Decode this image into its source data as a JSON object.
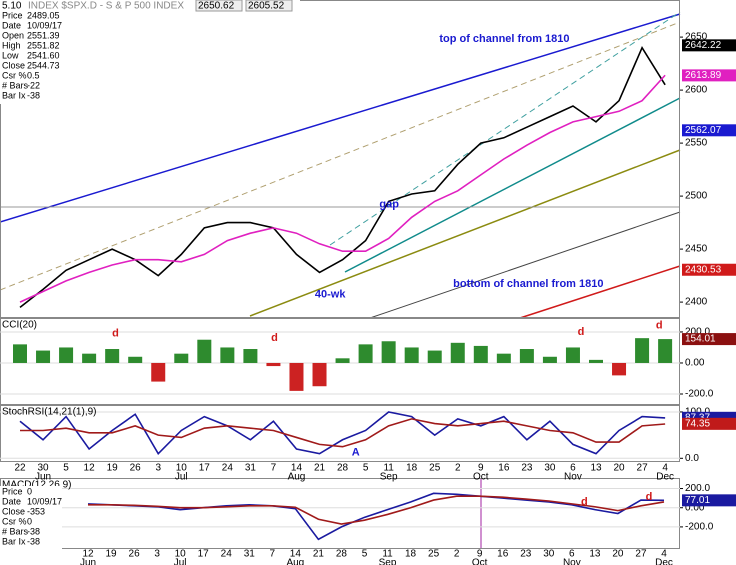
{
  "chart_data": [
    {
      "type": "line",
      "period": "5.10",
      "title": "INDEX $SPX.D - S & P 500 INDEX",
      "header_values": [
        2650.62,
        2605.52
      ],
      "info": [
        [
          "Price",
          "2489.05"
        ],
        [
          "Date",
          "10/09/17"
        ],
        [
          "Open",
          "2551.39"
        ],
        [
          "High",
          "2551.82"
        ],
        [
          "Low",
          "2541.60"
        ],
        [
          "Close",
          "2544.73"
        ],
        [
          "Csr %",
          "0.5"
        ],
        [
          "# Bars",
          "-22"
        ],
        [
          "Bar Ix",
          "-38"
        ]
      ],
      "ylim": [
        2385,
        2685
      ],
      "yticks": [
        2650,
        2600,
        2550,
        2500,
        2450,
        2400
      ],
      "grid": false,
      "series": [
        {
          "color": "#000000",
          "values": [
            2395,
            2412,
            2430,
            2440,
            2450,
            2440,
            2425,
            2445,
            2470,
            2475,
            2475,
            2470,
            2445,
            2428,
            2440,
            2458,
            2495,
            2502,
            2505,
            2530,
            2550,
            2555,
            2565,
            2575,
            2585,
            2570,
            2590,
            2640,
            2605
          ]
        },
        {
          "color": "#e020c0",
          "values": [
            2400,
            2410,
            2420,
            2428,
            2435,
            2440,
            2440,
            2438,
            2445,
            2458,
            2465,
            2470,
            2465,
            2455,
            2448,
            2448,
            2460,
            2480,
            2495,
            2505,
            2520,
            2535,
            2548,
            2560,
            2570,
            2575,
            2580,
            2590,
            2614
          ]
        }
      ],
      "tags": [
        {
          "value": 2642.22,
          "color": "#000000"
        },
        {
          "value": 2613.89,
          "color": "#e020c0"
        },
        {
          "value": 2562.07,
          "color": "#1a1ad0"
        },
        {
          "value": 2430.53,
          "color": "#d01a1a"
        }
      ],
      "annotations": [
        {
          "text": "top of channel from 1810",
          "x": 18.2,
          "y": 2648,
          "color": "#1a1ad0"
        },
        {
          "text": "bottom of channel from 1810",
          "x": 18.8,
          "y": 2417,
          "color": "#1a1ad0"
        },
        {
          "text": "40-wk",
          "x": 12.8,
          "y": 2407,
          "color": "#1a1ad0"
        },
        {
          "text": "gap",
          "x": 15.6,
          "y": 2492,
          "color": "#1a1ad0"
        }
      ]
    },
    {
      "type": "bar",
      "title": "CCI(20)",
      "ylim": [
        -271,
        290
      ],
      "yticks": [
        {
          "value": 200,
          "label": "200.0"
        },
        {
          "value": 0,
          "label": "0.00"
        },
        {
          "value": -200,
          "label": "-200.0"
        }
      ],
      "grid": true,
      "series": [
        {
          "pos_color": "#2e8b2e",
          "neg_color": "#cc2222",
          "values": [
            120,
            80,
            100,
            60,
            90,
            40,
            -120,
            60,
            150,
            100,
            90,
            -20,
            -180,
            -150,
            30,
            120,
            140,
            100,
            80,
            130,
            110,
            60,
            90,
            40,
            100,
            20,
            -80,
            160,
            154
          ]
        }
      ],
      "tags": [
        {
          "value": 154.01,
          "color": "#8b1010"
        }
      ],
      "annotations": [
        {
          "text": "d",
          "x": 4,
          "y": 190,
          "color": "#d01a1a"
        },
        {
          "text": "d",
          "x": 10.9,
          "y": 160,
          "color": "#d01a1a"
        },
        {
          "text": "d",
          "x": 24.2,
          "y": 200,
          "color": "#d01a1a"
        },
        {
          "text": "d",
          "x": 27.6,
          "y": 240,
          "color": "#d01a1a"
        }
      ]
    },
    {
      "type": "line",
      "title": "StochRSI(14,21(1),9)",
      "ylim": [
        -8,
        115
      ],
      "yticks": [
        {
          "value": 100,
          "label": "100.0"
        },
        {
          "value": 0,
          "label": "0.0"
        }
      ],
      "grid": true,
      "categories": [
        "22",
        "30",
        "5",
        "12",
        "19",
        "26",
        "3",
        "10",
        "17",
        "24",
        "31",
        "7",
        "14",
        "21",
        "28",
        "5",
        "11",
        "18",
        "25",
        "2",
        "9",
        "16",
        "23",
        "30",
        "6",
        "13",
        "20",
        "27",
        "4"
      ],
      "months": [
        null,
        "Jun",
        null,
        null,
        null,
        null,
        null,
        "Jul",
        null,
        null,
        null,
        null,
        "Aug",
        null,
        null,
        null,
        "Sep",
        null,
        null,
        null,
        "Oct",
        null,
        null,
        null,
        "Nov",
        null,
        null,
        null,
        "Dec"
      ],
      "series": [
        {
          "color": "#1a1aa0",
          "values": [
            80,
            40,
            90,
            20,
            60,
            95,
            10,
            60,
            90,
            70,
            40,
            80,
            20,
            10,
            40,
            60,
            100,
            90,
            50,
            85,
            70,
            90,
            40,
            80,
            30,
            10,
            60,
            90,
            87
          ]
        },
        {
          "color": "#a01a1a",
          "values": [
            60,
            60,
            65,
            55,
            55,
            70,
            50,
            45,
            65,
            70,
            65,
            60,
            45,
            30,
            25,
            40,
            70,
            85,
            75,
            70,
            75,
            80,
            70,
            60,
            55,
            35,
            35,
            70,
            74
          ]
        }
      ],
      "tags": [
        {
          "value": 87.37,
          "color": "#1a1aa0"
        },
        {
          "value": 74.35,
          "color": "#c01a1a"
        }
      ],
      "annotations": [
        {
          "text": "A",
          "x": 14.4,
          "y": 12,
          "color": "#1a1ad0"
        }
      ]
    },
    {
      "type": "line",
      "title": "MACD(12,26,9)",
      "ylim": [
        -420,
        310
      ],
      "yticks": [
        {
          "value": 200,
          "label": "200.0"
        },
        {
          "value": 0,
          "label": "0.00"
        },
        {
          "value": -200,
          "label": "-200.0"
        }
      ],
      "grid": true,
      "info": [
        [
          "Price",
          "0"
        ],
        [
          "Date",
          "10/09/17"
        ],
        [
          "Close",
          "-353"
        ],
        [
          "Csr %",
          "0"
        ],
        [
          "# Bars",
          "-38"
        ],
        [
          "Bar Ix",
          "-38"
        ]
      ],
      "categories": [
        "12",
        "19",
        "26",
        "3",
        "10",
        "17",
        "24",
        "31",
        "7",
        "14",
        "21",
        "28",
        "5",
        "11",
        "18",
        "25",
        "2",
        "9",
        "16",
        "23",
        "30",
        "6",
        "13",
        "20",
        "27",
        "4"
      ],
      "months": [
        "Jun",
        null,
        null,
        null,
        "Jul",
        null,
        null,
        null,
        null,
        "Aug",
        null,
        null,
        null,
        "Sep",
        null,
        null,
        null,
        "Oct",
        null,
        null,
        null,
        "Nov",
        null,
        null,
        null,
        "Dec"
      ],
      "series": [
        {
          "color": "#1a1aa0",
          "values": [
            40,
            30,
            20,
            10,
            -20,
            0,
            20,
            30,
            20,
            -10,
            -330,
            -200,
            -100,
            -20,
            60,
            150,
            140,
            120,
            100,
            80,
            60,
            30,
            -20,
            -60,
            80,
            77
          ]
        },
        {
          "color": "#a01a1a",
          "values": [
            30,
            30,
            25,
            15,
            0,
            0,
            10,
            20,
            20,
            5,
            -120,
            -170,
            -130,
            -70,
            0,
            80,
            120,
            120,
            110,
            90,
            70,
            40,
            10,
            -30,
            20,
            60
          ]
        }
      ],
      "tags": [
        {
          "value": 77.01,
          "color": "#1a1aa0"
        }
      ],
      "annotations": [
        {
          "text": "d",
          "x": 21.4,
          "y": 60,
          "color": "#d01a1a"
        },
        {
          "text": "d",
          "x": 24.2,
          "y": 110,
          "color": "#d01a1a"
        }
      ]
    }
  ]
}
